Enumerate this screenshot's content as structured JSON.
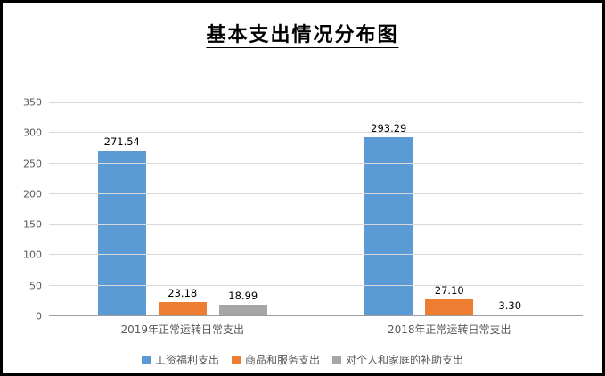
{
  "window": {
    "title": "基本支出情况分布图"
  },
  "chart_data": {
    "type": "bar",
    "title": "基本支出情况分布图",
    "categories": [
      "2019年正常运转日常支出",
      "2018年正常运转日常支出"
    ],
    "series": [
      {
        "name": "工资福利支出",
        "color": "#5B9BD5",
        "values": [
          271.54,
          293.29
        ]
      },
      {
        "name": "商品和服务支出",
        "color": "#ED7D31",
        "values": [
          23.18,
          27.1
        ]
      },
      {
        "name": "对个人和家庭的补助支出",
        "color": "#A5A5A5",
        "values": [
          18.99,
          3.3
        ]
      }
    ],
    "data_labels": [
      [
        "271.54",
        "23.18",
        "18.99"
      ],
      [
        "293.29",
        "27.10",
        "3.30"
      ]
    ],
    "ylim": [
      0,
      350
    ],
    "ytick_step": 50,
    "grid": true,
    "legend_position": "bottom",
    "gridline_color": "#d9d9d9",
    "axis_text_color": "#595959"
  }
}
